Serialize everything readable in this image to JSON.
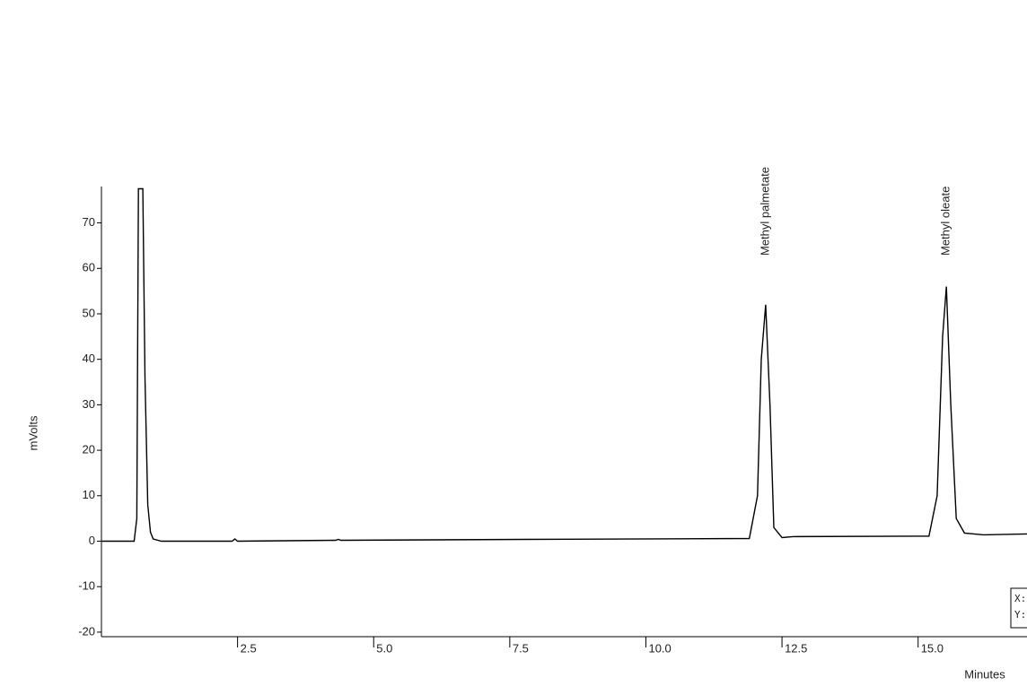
{
  "chart_data": {
    "type": "line",
    "x_label": "Minutes",
    "y_label": "mVolts",
    "xlim": [
      0,
      17
    ],
    "ylim": [
      -21,
      78
    ],
    "xticks": [
      2.5,
      {
        "value": 5,
        "label": "5.0"
      },
      7.5,
      {
        "value": 10,
        "label": "10.0"
      },
      12.5,
      {
        "value": 15,
        "label": "15.0"
      }
    ],
    "yticks": [
      -20,
      -10,
      0,
      10,
      20,
      30,
      40,
      50,
      60,
      70
    ],
    "series": [
      {
        "color": "#000000",
        "x": [
          0,
          0.6,
          0.65,
          0.68,
          0.72,
          0.76,
          0.8,
          0.85,
          0.9,
          0.95,
          1.1,
          2.4,
          2.45,
          2.5,
          4.3,
          4.35,
          4.4,
          7.8,
          11.9,
          12.05,
          12.12,
          12.2,
          12.28,
          12.35,
          12.5,
          12.7,
          15.2,
          15.35,
          15.45,
          15.52,
          15.6,
          15.7,
          15.85,
          16.2,
          17
        ],
        "values": [
          0,
          0,
          5,
          77.5,
          77.5,
          77.5,
          36,
          8,
          2,
          0.5,
          0,
          0,
          0.5,
          0,
          0.2,
          0.4,
          0.2,
          0.4,
          0.6,
          10,
          40,
          52,
          30,
          3,
          0.8,
          1,
          1.1,
          10,
          45,
          56,
          30,
          5,
          1.8,
          1.4,
          1.6
        ]
      }
    ],
    "annotations": [
      {
        "text": "Methyl palmetate",
        "x": 12.2
      },
      {
        "text": "Methyl oleate",
        "x": 15.52
      }
    ],
    "cursor_labels": [
      "X:",
      "Y:"
    ]
  }
}
